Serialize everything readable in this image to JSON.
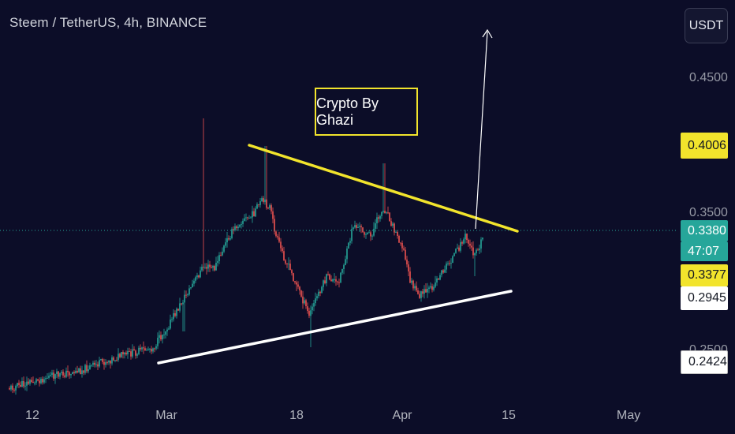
{
  "header": {
    "title": "Steem / TetherUS, 4h, BINANCE"
  },
  "currency_button": {
    "label": "USDT"
  },
  "annotation": {
    "text": "Crypto By Ghazi"
  },
  "price_axis": {
    "ticks": [
      "0.4500",
      "0.3500",
      "0.2500"
    ],
    "labels": {
      "resistance": "0.4006",
      "last_price": "0.3380",
      "countdown": "47:07",
      "prev_close": "0.3377",
      "support_upper": "0.2945",
      "support_lower": "0.2424"
    }
  },
  "time_axis": {
    "ticks": [
      "12",
      "Mar",
      "18",
      "Apr",
      "15",
      "May"
    ]
  },
  "colors": {
    "background": "#0c0d28",
    "up_candle": "#26a69a",
    "down_candle": "#ef5350",
    "resistance_line": "#f2e42c",
    "support_line": "#ffffff",
    "last_price_label": "#26a69a",
    "resistance_label": "#f2e42c"
  }
}
